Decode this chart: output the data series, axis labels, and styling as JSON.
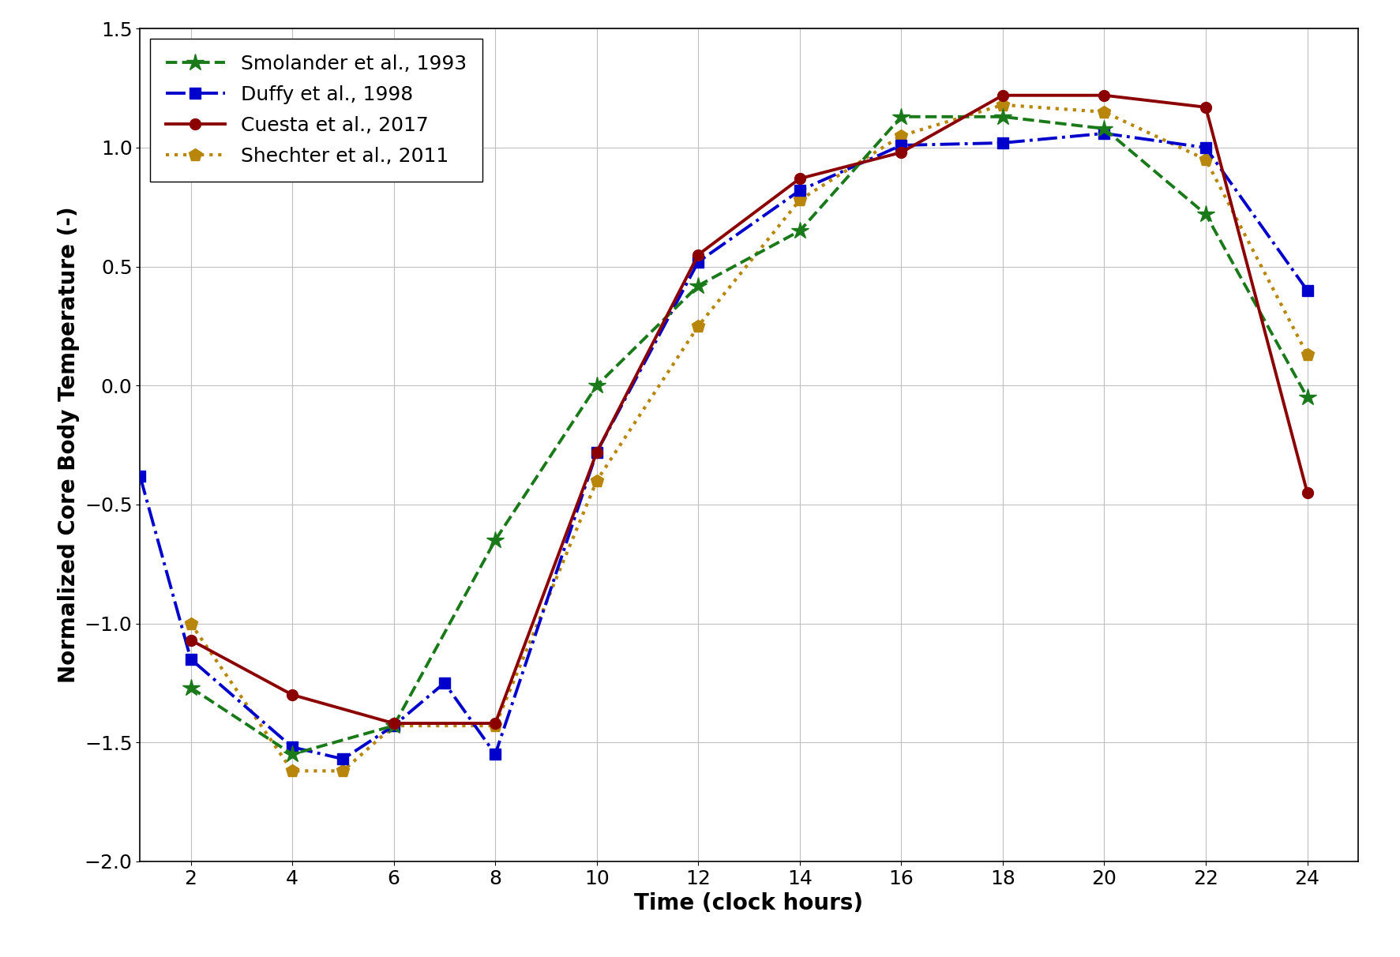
{
  "title": "",
  "xlabel": "Time (clock hours)",
  "ylabel": "Normalized Core Body Temperature (-)",
  "xlim": [
    1,
    25
  ],
  "ylim": [
    -2.0,
    1.5
  ],
  "xticks": [
    2,
    4,
    6,
    8,
    10,
    12,
    14,
    16,
    18,
    20,
    22,
    24
  ],
  "yticks": [
    -2.0,
    -1.5,
    -1.0,
    -0.5,
    0.0,
    0.5,
    1.0,
    1.5
  ],
  "smolander": {
    "label": "Smolander et al., 1993",
    "color": "#1a7a1a",
    "x": [
      2,
      4,
      6,
      8,
      10,
      12,
      14,
      16,
      18,
      20,
      22,
      24
    ],
    "y": [
      -1.27,
      -1.55,
      -1.43,
      -0.65,
      0.0,
      0.42,
      0.65,
      1.13,
      1.13,
      1.08,
      0.72,
      -0.05
    ]
  },
  "duffy": {
    "label": "Duffy et al., 1998",
    "color": "#0000cc",
    "x": [
      1,
      2,
      4,
      5,
      6,
      7,
      8,
      10,
      12,
      14,
      16,
      18,
      20,
      22,
      24
    ],
    "y": [
      -0.38,
      -1.15,
      -1.52,
      -1.57,
      -1.43,
      -1.25,
      -1.55,
      -0.28,
      0.52,
      0.82,
      1.01,
      1.02,
      1.06,
      1.0,
      0.4
    ]
  },
  "cuesta": {
    "label": "Cuesta et al., 2017",
    "color": "#8b0000",
    "x": [
      2,
      4,
      6,
      8,
      10,
      12,
      14,
      16,
      18,
      20,
      22,
      24
    ],
    "y": [
      -1.07,
      -1.3,
      -1.42,
      -1.42,
      -0.28,
      0.55,
      0.87,
      0.98,
      1.22,
      1.22,
      1.17,
      -0.45
    ]
  },
  "shechter": {
    "label": "Shechter et al., 2011",
    "color": "#b8860b",
    "x": [
      2,
      4,
      5,
      6,
      8,
      10,
      12,
      14,
      16,
      18,
      20,
      22,
      24
    ],
    "y": [
      -1.0,
      -1.62,
      -1.62,
      -1.43,
      -1.43,
      -0.4,
      0.25,
      0.78,
      1.05,
      1.18,
      1.15,
      0.95,
      0.13
    ]
  }
}
